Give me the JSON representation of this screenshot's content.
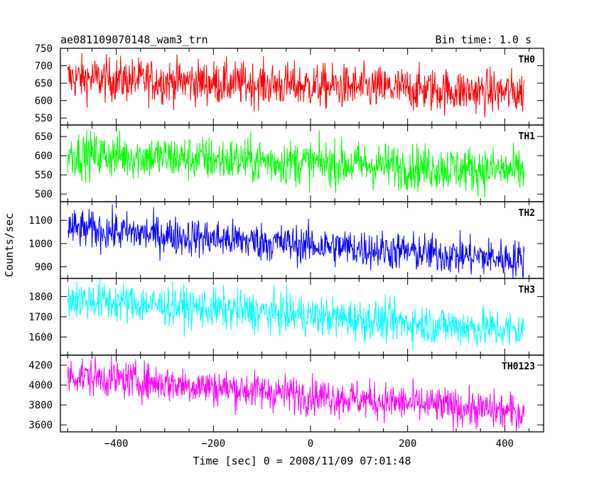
{
  "chart_data": {
    "type": "line",
    "title": "ae081109070148_wam3_trn",
    "subtitle": "Bin time: 1.0 s",
    "xlabel": "Time [sec] 0 = 2008/11/09 07:01:48",
    "ylabel": "Counts/sec",
    "xlim": [
      -515,
      480
    ],
    "x_range": [
      -500,
      440
    ],
    "xticks": [
      -400,
      -200,
      0,
      200,
      400
    ],
    "grid": false,
    "panels": [
      {
        "name": "TH0",
        "color": "#ff0000",
        "ylim": [
          530,
          750
        ],
        "yticks": [
          550,
          600,
          650,
          700,
          750
        ],
        "start": 665,
        "end": 622,
        "noise": 32
      },
      {
        "name": "TH1",
        "color": "#00ff00",
        "ylim": [
          480,
          680
        ],
        "yticks": [
          500,
          550,
          600,
          650
        ],
        "start": 605,
        "end": 560,
        "noise": 30
      },
      {
        "name": "TH2",
        "color": "#0000ff",
        "ylim": [
          850,
          1180
        ],
        "yticks": [
          900,
          1000,
          1100
        ],
        "start": 1065,
        "end": 930,
        "noise": 42
      },
      {
        "name": "TH3",
        "color": "#00ffff",
        "ylim": [
          1510,
          1890
        ],
        "yticks": [
          1600,
          1700,
          1800
        ],
        "start": 1790,
        "end": 1630,
        "noise": 50
      },
      {
        "name": "TH0123",
        "color": "#ff00ff",
        "ylim": [
          3530,
          4300
        ],
        "yticks": [
          3600,
          3800,
          4000,
          4200
        ],
        "start": 4100,
        "end": 3720,
        "noise": 95
      }
    ]
  }
}
